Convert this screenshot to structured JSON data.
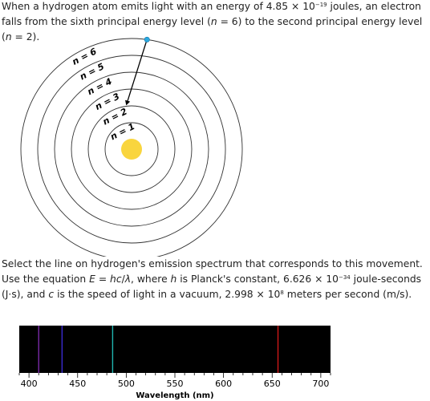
{
  "intro": {
    "t1": "When a hydrogen atom emits light with an energy of 4.85 × 10",
    "exp": "−19",
    "t2": " joules, an electron falls from the sixth principal energy level (",
    "var1": "n",
    "t3": " = 6) to the second principal energy level (",
    "var2": "n",
    "t4": " = 2)."
  },
  "diagram": {
    "levels": [
      {
        "n": 1,
        "label": "n = 1"
      },
      {
        "n": 2,
        "label": "n = 2"
      },
      {
        "n": 3,
        "label": "n = 3"
      },
      {
        "n": 4,
        "label": "n = 4"
      },
      {
        "n": 5,
        "label": "n = 5"
      },
      {
        "n": 6,
        "label": "n = 6"
      }
    ],
    "transition": {
      "from": 6,
      "to": 2
    },
    "colors": {
      "nucleus": "#f9d53e",
      "electron": "#2aa9e0",
      "ring": "#333333",
      "arrow": "#000000"
    }
  },
  "question": {
    "t1": "Select the line on hydrogen's emission spectrum that corresponds to this movement. Use the equation ",
    "v_e": "E",
    "t2": " = ",
    "v_hc": "hc",
    "t3": "/",
    "v_lambda": "λ",
    "t4": ", where ",
    "v_h": "h",
    "t5": " is Planck's constant, 6.626 × 10",
    "exp1": "−34",
    "t6": " joule-seconds (J·s), and ",
    "v_c": "c",
    "t7": " is the speed of light in a vacuum, 2.998 × 10",
    "exp2": "8",
    "t8": " meters per second (m/s)."
  },
  "spectrum": {
    "xlabel": "Wavelength (nm)",
    "xlim": [
      390,
      710
    ],
    "ticks": [
      "400",
      "450",
      "500",
      "550",
      "600",
      "650",
      "700"
    ],
    "lines": [
      {
        "wavelength": 410,
        "color": "#7a2aa8"
      },
      {
        "wavelength": 434,
        "color": "#3a2ad0"
      },
      {
        "wavelength": 486,
        "color": "#1fb5b0"
      },
      {
        "wavelength": 656,
        "color": "#d01818"
      }
    ],
    "background": "#000000"
  }
}
